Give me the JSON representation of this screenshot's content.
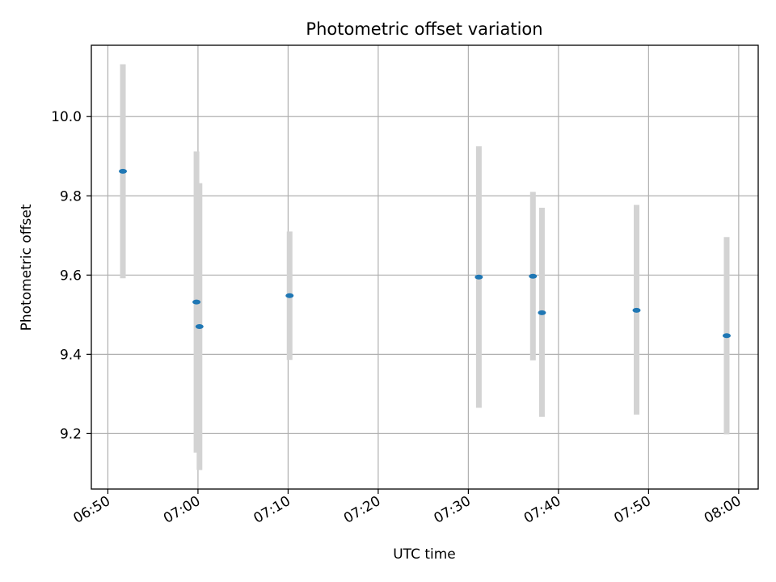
{
  "chart_data": {
    "type": "scatter",
    "title": "Photometric offset variation",
    "xlabel": "UTC time",
    "ylabel": "Photometric offset",
    "x_unit": "HH:MM UTC",
    "xlim": [
      "06:48:10",
      "08:02:10"
    ],
    "ylim": [
      9.06,
      10.18
    ],
    "xticks": [
      "06:50",
      "07:00",
      "07:10",
      "07:20",
      "07:30",
      "07:40",
      "07:50",
      "08:00"
    ],
    "yticks": [
      9.2,
      9.4,
      9.6,
      9.8,
      10.0
    ],
    "grid": true,
    "marker_color": "#1f77b4",
    "errorbar_color": "#d3d3d3",
    "points": [
      {
        "x": "06:51:40",
        "y": 9.862,
        "ymin": 9.592,
        "ymax": 10.132
      },
      {
        "x": "06:59:50",
        "y": 9.532,
        "ymin": 9.152,
        "ymax": 9.912
      },
      {
        "x": "07:00:10",
        "y": 9.47,
        "ymin": 9.108,
        "ymax": 9.832
      },
      {
        "x": "07:10:10",
        "y": 9.548,
        "ymin": 9.386,
        "ymax": 9.71
      },
      {
        "x": "07:31:10",
        "y": 9.595,
        "ymin": 9.265,
        "ymax": 9.925
      },
      {
        "x": "07:37:10",
        "y": 9.597,
        "ymin": 9.385,
        "ymax": 9.81
      },
      {
        "x": "07:38:10",
        "y": 9.505,
        "ymin": 9.242,
        "ymax": 9.77
      },
      {
        "x": "07:48:40",
        "y": 9.511,
        "ymin": 9.248,
        "ymax": 9.777
      },
      {
        "x": "07:58:40",
        "y": 9.447,
        "ymin": 9.198,
        "ymax": 9.696
      }
    ]
  }
}
